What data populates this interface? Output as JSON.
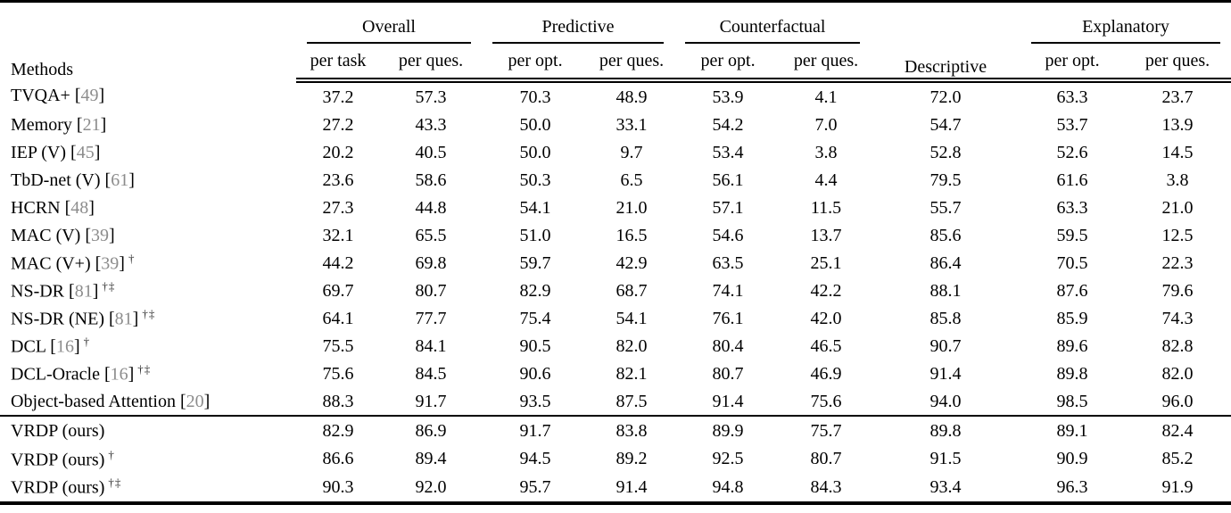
{
  "table": {
    "title_semantic": "CLEVRER question answering accuracy comparison table",
    "colors": {
      "text": "#000000",
      "background": "#ffffff",
      "citation_number": "#8c8c8c",
      "rule": "#000000"
    },
    "header": {
      "methods_label": "Methods",
      "groups": [
        {
          "label": "Overall",
          "subs": [
            "per task",
            "per ques."
          ]
        },
        {
          "label": "Predictive",
          "subs": [
            "per opt.",
            "per ques."
          ]
        },
        {
          "label": "Counterfactual",
          "subs": [
            "per opt.",
            "per ques."
          ]
        },
        {
          "label": "Descriptive",
          "subs": []
        },
        {
          "label": "Explanatory",
          "subs": [
            "per opt.",
            "per ques."
          ]
        }
      ]
    },
    "body_rows": [
      {
        "method": "TVQA+",
        "cite": "49",
        "marks": "",
        "values": [
          "37.2",
          "57.3",
          "70.3",
          "48.9",
          "53.9",
          "4.1",
          "72.0",
          "63.3",
          "23.7"
        ],
        "bold": []
      },
      {
        "method": "Memory",
        "cite": "21",
        "marks": "",
        "values": [
          "27.2",
          "43.3",
          "50.0",
          "33.1",
          "54.2",
          "7.0",
          "54.7",
          "53.7",
          "13.9"
        ],
        "bold": []
      },
      {
        "method": "IEP (V)",
        "cite": "45",
        "marks": "",
        "values": [
          "20.2",
          "40.5",
          "50.0",
          "9.7",
          "53.4",
          "3.8",
          "52.8",
          "52.6",
          "14.5"
        ],
        "bold": []
      },
      {
        "method": "TbD-net (V)",
        "cite": "61",
        "marks": "",
        "values": [
          "23.6",
          "58.6",
          "50.3",
          "6.5",
          "56.1",
          "4.4",
          "79.5",
          "61.6",
          "3.8"
        ],
        "bold": []
      },
      {
        "method": "HCRN",
        "cite": "48",
        "marks": "",
        "values": [
          "27.3",
          "44.8",
          "54.1",
          "21.0",
          "57.1",
          "11.5",
          "55.7",
          "63.3",
          "21.0"
        ],
        "bold": []
      },
      {
        "method": "MAC (V)",
        "cite": "39",
        "marks": "",
        "values": [
          "32.1",
          "65.5",
          "51.0",
          "16.5",
          "54.6",
          "13.7",
          "85.6",
          "59.5",
          "12.5"
        ],
        "bold": []
      },
      {
        "method": "MAC (V+)",
        "cite": "39",
        "marks": "†",
        "values": [
          "44.2",
          "69.8",
          "59.7",
          "42.9",
          "63.5",
          "25.1",
          "86.4",
          "70.5",
          "22.3"
        ],
        "bold": []
      },
      {
        "method": "NS-DR",
        "cite": "81",
        "marks": "†‡",
        "values": [
          "69.7",
          "80.7",
          "82.9",
          "68.7",
          "74.1",
          "42.2",
          "88.1",
          "87.6",
          "79.6"
        ],
        "bold": []
      },
      {
        "method": "NS-DR (NE)",
        "cite": "81",
        "marks": "†‡",
        "values": [
          "64.1",
          "77.7",
          "75.4",
          "54.1",
          "76.1",
          "42.0",
          "85.8",
          "85.9",
          "74.3"
        ],
        "bold": []
      },
      {
        "method": "DCL",
        "cite": "16",
        "marks": "†",
        "values": [
          "75.5",
          "84.1",
          "90.5",
          "82.0",
          "80.4",
          "46.5",
          "90.7",
          "89.6",
          "82.8"
        ],
        "bold": []
      },
      {
        "method": "DCL-Oracle",
        "cite": "16",
        "marks": "†‡",
        "values": [
          "75.6",
          "84.5",
          "90.6",
          "82.1",
          "80.7",
          "46.9",
          "91.4",
          "89.8",
          "82.0"
        ],
        "bold": []
      },
      {
        "method": "Object-based Attention",
        "cite": "20",
        "marks": "",
        "values": [
          "88.3",
          "91.7",
          "93.5",
          "87.5",
          "91.4",
          "75.6",
          "94.0",
          "98.5",
          "96.0"
        ],
        "bold": [
          6,
          7,
          8
        ]
      }
    ],
    "footer_rows": [
      {
        "method": "VRDP (ours)",
        "cite": "",
        "marks": "",
        "values": [
          "82.9",
          "86.9",
          "91.7",
          "83.8",
          "89.9",
          "75.7",
          "89.8",
          "89.1",
          "82.4"
        ],
        "bold": [
          5
        ]
      },
      {
        "method": "VRDP (ours)",
        "cite": "",
        "marks": "†",
        "values": [
          "86.6",
          "89.4",
          "94.5",
          "89.2",
          "92.5",
          "80.7",
          "91.5",
          "90.9",
          "85.2"
        ],
        "bold": [
          2,
          3,
          4,
          5
        ]
      },
      {
        "method": "VRDP (ours)",
        "cite": "",
        "marks": "†‡",
        "values": [
          "90.3",
          "92.0",
          "95.7",
          "91.4",
          "94.8",
          "84.3",
          "93.4",
          "96.3",
          "91.9"
        ],
        "bold": [
          0,
          1,
          2,
          3,
          4,
          5
        ]
      }
    ]
  }
}
